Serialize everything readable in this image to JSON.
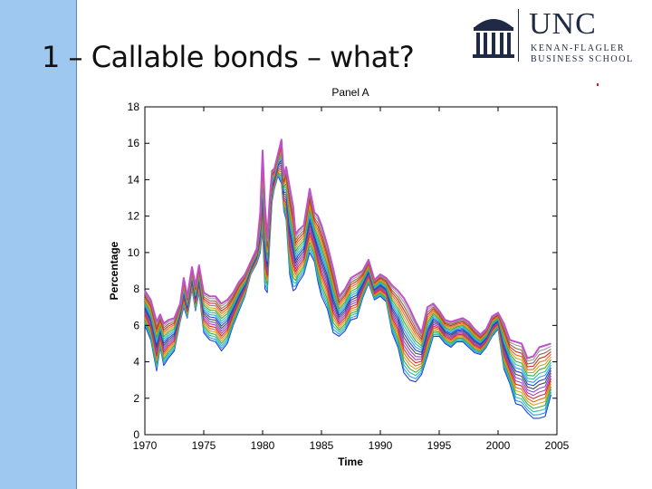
{
  "slide": {
    "title": "1 – Callable bonds – what?",
    "accent_color": "#9ec8f0"
  },
  "logo": {
    "icon": "old-well-icon",
    "name": "UNC",
    "line1": "KENAN-FLAGLER",
    "line2": "BUSINESS SCHOOL",
    "color": "#1f2a44"
  },
  "chart_data": {
    "type": "line",
    "title": "Panel A",
    "xlabel": "Time",
    "ylabel": "Percentage",
    "xlim": [
      1970,
      2005
    ],
    "ylim": [
      0,
      18
    ],
    "x_ticks": [
      "1970",
      "1975",
      "1980",
      "1985",
      "1990",
      "1995",
      "2000",
      "2005"
    ],
    "y_ticks": [
      "0",
      "2",
      "4",
      "6",
      "8",
      "10",
      "12",
      "14",
      "16",
      "18"
    ],
    "grid": false,
    "legend": "none",
    "series_count": 20,
    "colors": [
      "#1f3fd1",
      "#2a9df4",
      "#2bbf9a",
      "#3ca63c",
      "#d6a020",
      "#e06a1c",
      "#d02a2a",
      "#b03ab0",
      "#7a4ad0",
      "#4a4a4a",
      "#1f3fd1",
      "#2a9df4",
      "#2bbf9a",
      "#3ca63c",
      "#d6a020",
      "#e06a1c",
      "#d02a2a",
      "#8a6a4a",
      "#9a9a9a",
      "#c050c8"
    ],
    "top_color": "#c050c8",
    "bottom_color": "#1f3fd1",
    "x": [
      1970.0,
      1970.5,
      1971.0,
      1971.3,
      1971.6,
      1972.0,
      1972.5,
      1973.0,
      1973.3,
      1973.6,
      1974.0,
      1974.3,
      1974.6,
      1975.0,
      1975.5,
      1976.0,
      1976.5,
      1977.0,
      1977.5,
      1978.0,
      1978.5,
      1979.0,
      1979.5,
      1979.8,
      1980.0,
      1980.2,
      1980.4,
      1980.6,
      1980.8,
      1981.0,
      1981.3,
      1981.6,
      1981.8,
      1982.0,
      1982.3,
      1982.6,
      1982.8,
      1983.0,
      1983.5,
      1984.0,
      1984.4,
      1984.7,
      1985.0,
      1985.5,
      1986.0,
      1986.5,
      1987.0,
      1987.5,
      1988.0,
      1988.5,
      1989.0,
      1989.5,
      1990.0,
      1990.5,
      1991.0,
      1991.5,
      1992.0,
      1992.5,
      1993.0,
      1993.5,
      1994.0,
      1994.5,
      1995.0,
      1995.5,
      1996.0,
      1996.5,
      1997.0,
      1997.5,
      1998.0,
      1998.5,
      1999.0,
      1999.5,
      2000.0,
      2000.5,
      2001.0,
      2001.5,
      2002.0,
      2002.5,
      2003.0,
      2003.5,
      2004.0,
      2004.5
    ],
    "y_top": [
      7.9,
      7.4,
      6.2,
      6.6,
      6.1,
      6.3,
      6.4,
      7.2,
      8.6,
      7.6,
      9.2,
      8.2,
      9.3,
      7.8,
      7.6,
      7.6,
      7.2,
      7.4,
      7.8,
      8.4,
      8.8,
      9.5,
      10.2,
      12.2,
      15.6,
      12.6,
      10.8,
      12.9,
      14.5,
      14.6,
      15.4,
      16.2,
      14.2,
      14.7,
      13.6,
      12.5,
      11.0,
      11.2,
      11.5,
      13.5,
      12.2,
      12.0,
      11.5,
      10.4,
      9.1,
      7.6,
      8.0,
      8.6,
      8.8,
      9.0,
      9.6,
      8.5,
      8.8,
      8.6,
      8.2,
      7.9,
      7.5,
      6.9,
      6.2,
      5.6,
      7.0,
      7.2,
      6.8,
      6.3,
      6.2,
      6.3,
      6.4,
      6.2,
      5.8,
      5.5,
      5.8,
      6.5,
      6.7,
      6.1,
      5.2,
      5.1,
      5.0,
      4.2,
      4.3,
      4.8,
      4.9,
      5.0
    ],
    "y_bottom": [
      6.0,
      5.2,
      3.5,
      4.8,
      3.8,
      4.2,
      4.6,
      6.2,
      7.0,
      6.4,
      8.0,
      6.8,
      7.8,
      5.6,
      5.2,
      5.1,
      4.6,
      5.0,
      6.0,
      6.8,
      7.6,
      8.8,
      9.4,
      10.0,
      11.2,
      8.0,
      7.8,
      10.5,
      12.8,
      13.5,
      14.2,
      13.8,
      12.3,
      11.8,
      8.8,
      7.9,
      8.0,
      8.3,
      8.8,
      10.0,
      9.5,
      8.4,
      7.6,
      6.9,
      5.6,
      5.4,
      5.7,
      6.3,
      6.4,
      7.5,
      8.3,
      7.4,
      7.6,
      7.3,
      5.6,
      4.8,
      3.4,
      3.0,
      2.9,
      3.3,
      4.3,
      5.4,
      5.4,
      5.0,
      4.8,
      5.1,
      5.1,
      4.8,
      4.5,
      4.4,
      4.8,
      5.4,
      5.8,
      3.6,
      2.8,
      1.7,
      1.6,
      1.2,
      0.9,
      0.9,
      1.0,
      2.2
    ]
  }
}
